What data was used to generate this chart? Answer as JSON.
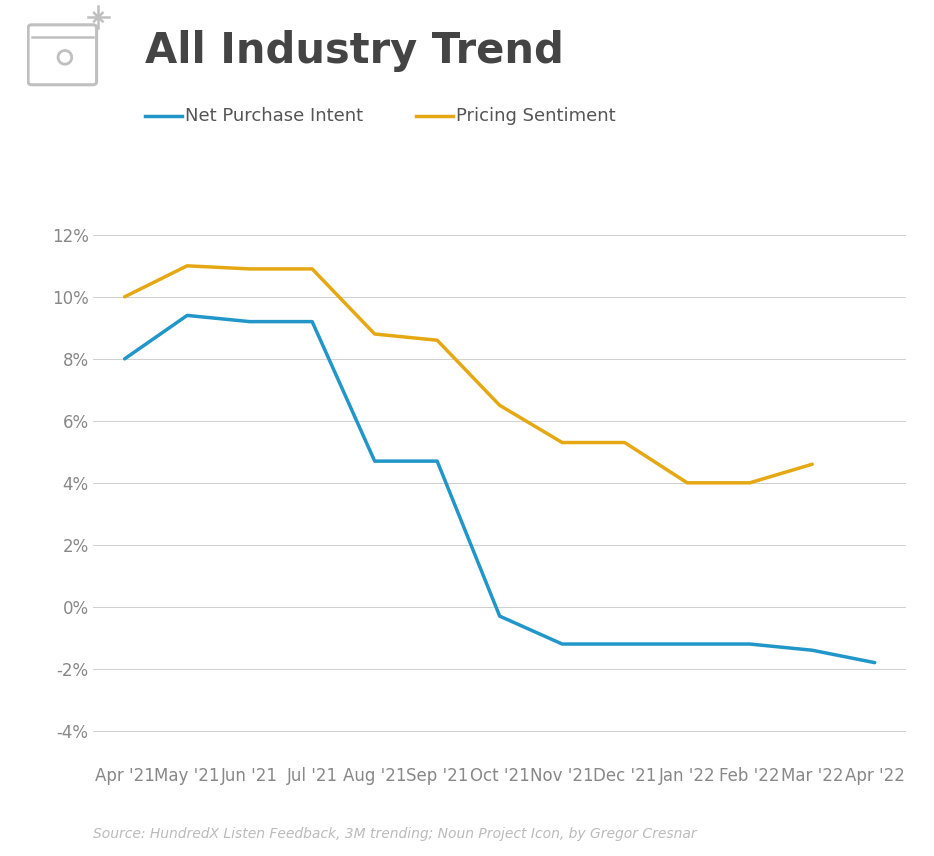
{
  "title": "All Industry Trend",
  "legend_npi": "Net Purchase Intent",
  "legend_ps": "Pricing Sentiment",
  "source": "Source: HundredX Listen Feedback, 3M trending; Noun Project Icon, by Gregor Cresnar",
  "x_labels": [
    "Apr '21",
    "May '21",
    "Jun '21",
    "Jul '21",
    "Aug '21",
    "Sep '21",
    "Oct '21",
    "Nov '21",
    "Dec '21",
    "Jan '22",
    "Feb '22",
    "Mar '22",
    "Apr '22"
  ],
  "net_purchase_intent": [
    0.08,
    0.094,
    0.092,
    0.092,
    0.047,
    0.047,
    -0.003,
    -0.012,
    -0.012,
    -0.012,
    -0.012,
    -0.014,
    -0.018
  ],
  "pricing_sentiment": [
    0.1,
    0.11,
    0.109,
    0.109,
    0.088,
    0.086,
    0.065,
    0.053,
    0.053,
    0.04,
    0.04,
    0.046,
    null
  ],
  "npi_color": "#2196C9",
  "ps_color": "#E5A813",
  "background_color": "#ffffff",
  "grid_color": "#d0d0d0",
  "title_color": "#444444",
  "label_color": "#888888",
  "legend_color": "#555555",
  "ylim": [
    -0.05,
    0.135
  ],
  "yticks": [
    -0.04,
    -0.02,
    0.0,
    0.02,
    0.04,
    0.06,
    0.08,
    0.1,
    0.12
  ],
  "title_fontsize": 30,
  "legend_fontsize": 13,
  "tick_fontsize": 12,
  "source_fontsize": 10,
  "line_width": 2.5
}
